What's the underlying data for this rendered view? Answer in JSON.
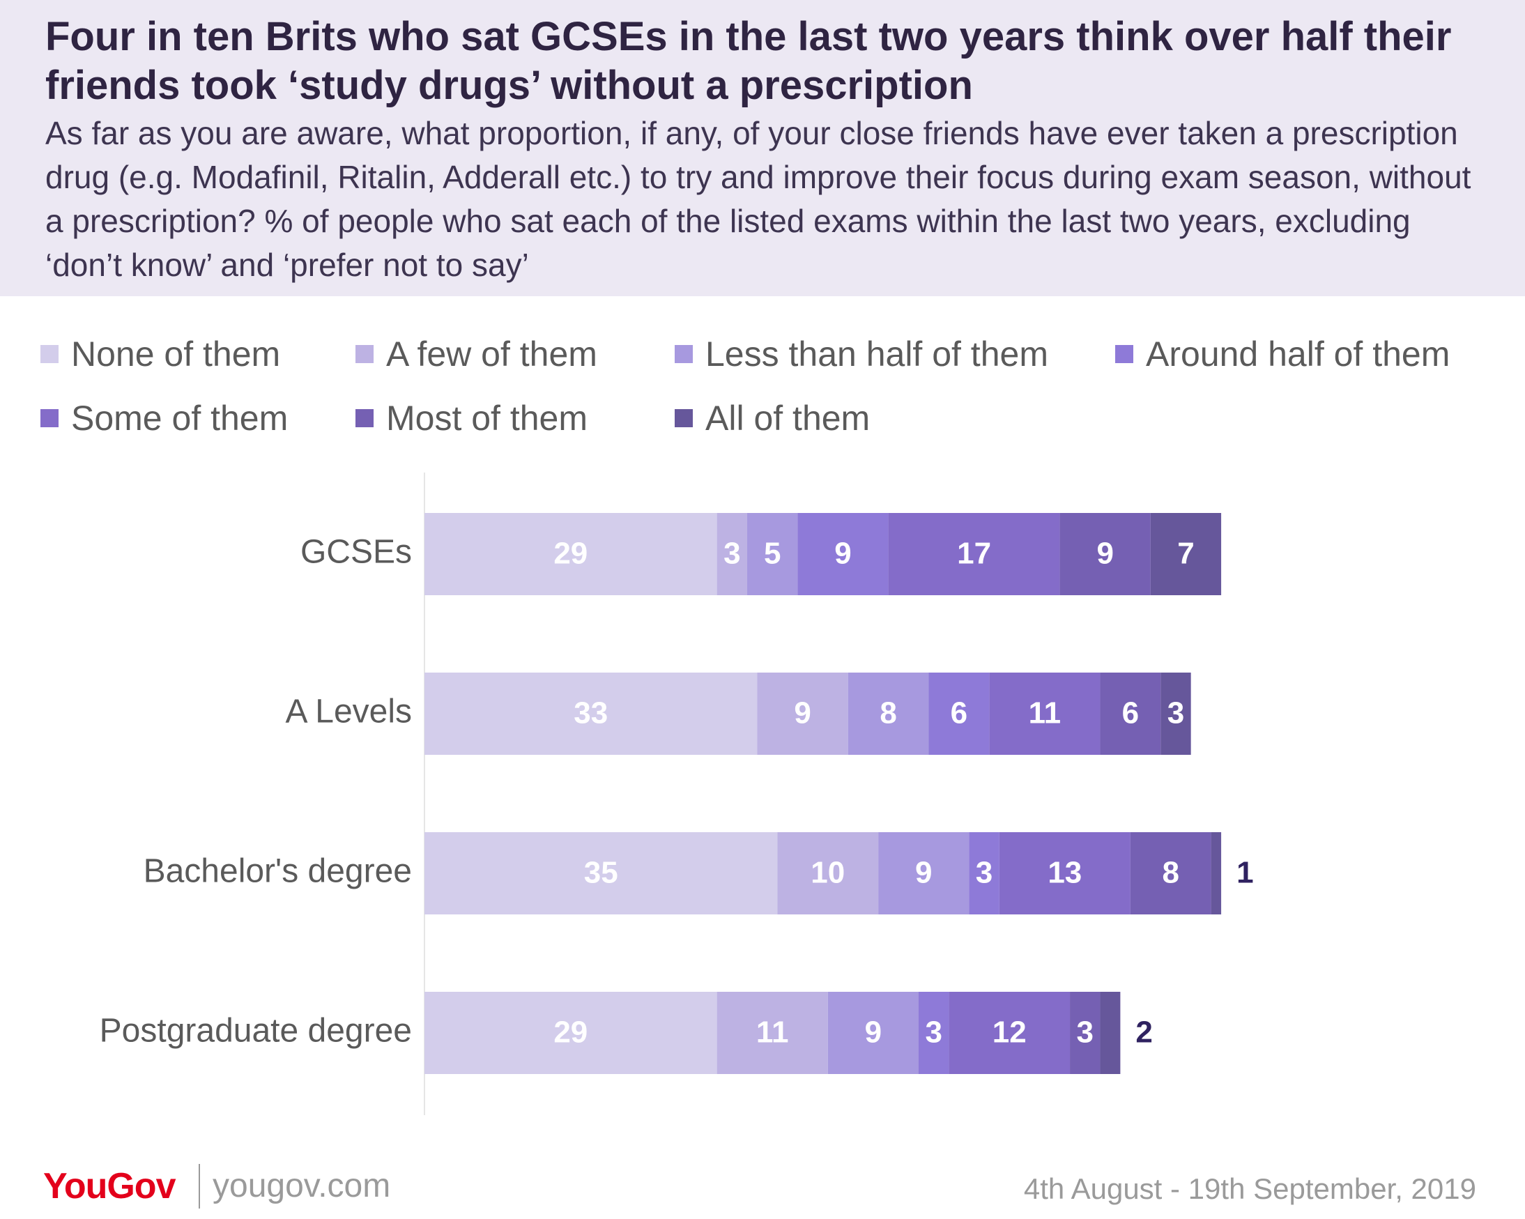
{
  "title": "Four in ten Brits who sat GCSEs in the last two years think over half their friends took ‘study drugs’ without a prescription",
  "subtitle": "As far as you are aware, what proportion, if any, of your close friends have ever taken a prescription drug (e.g. Modafinil, Ritalin, Adderall etc.) to try and improve their focus during exam season, without a prescription? % of people who sat each of the listed exams within the last two years, excluding ‘don’t know’ and ‘prefer not to say’",
  "footer": {
    "logo": "YouGov",
    "site": "yougov.com",
    "dates": "4th August - 19th September, 2019"
  },
  "chart_data": {
    "type": "bar",
    "orientation": "horizontal",
    "stacked": true,
    "title": "",
    "xlabel": "",
    "ylabel": "",
    "xlim": [
      0,
      100
    ],
    "grid": false,
    "legend_position": "top",
    "categories": [
      "GCSEs",
      "A Levels",
      "Bachelor's degree",
      "Postgraduate degree"
    ],
    "series": [
      {
        "name": "None of them",
        "color": "#d3cdeb",
        "values": [
          29,
          33,
          35,
          29
        ]
      },
      {
        "name": "A few of them",
        "color": "#bdb2e3",
        "values": [
          3,
          9,
          10,
          11
        ]
      },
      {
        "name": "Less than half of them",
        "color": "#a799df",
        "values": [
          5,
          8,
          9,
          9
        ]
      },
      {
        "name": "Around half of them",
        "color": "#8e7ad8",
        "values": [
          9,
          6,
          3,
          3
        ]
      },
      {
        "name": "Some of them",
        "color": "#846cc9",
        "values": [
          17,
          11,
          13,
          12
        ]
      },
      {
        "name": "Most of them",
        "color": "#7560b3",
        "values": [
          9,
          6,
          8,
          3
        ]
      },
      {
        "name": "All of them",
        "color": "#66579b",
        "values": [
          7,
          3,
          1,
          2
        ]
      }
    ],
    "label_colors": {
      "inside": "#ffffff",
      "outside": "#2f2260"
    }
  }
}
